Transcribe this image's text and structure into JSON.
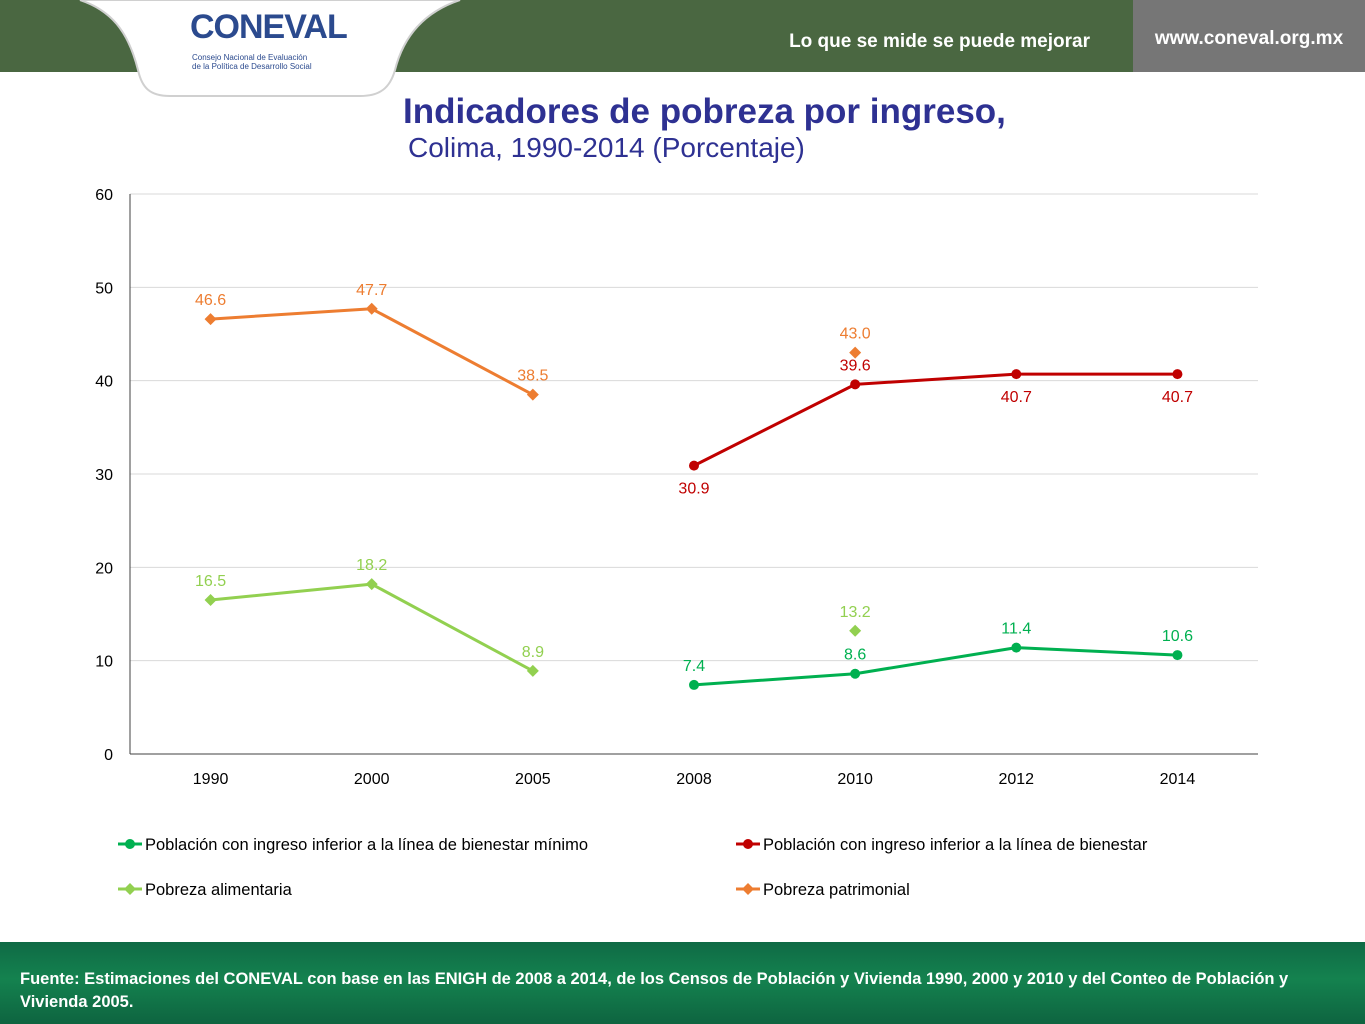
{
  "header": {
    "logo_text": "CONEVAL",
    "logo_subtitle_line1": "Consejo Nacional de Evaluación",
    "logo_subtitle_line2": "de la Política de Desarrollo Social",
    "tagline": "Lo que se mide se puede mejorar",
    "url": "www.coneval.org.mx"
  },
  "title": "Indicadores de pobreza por ingreso,",
  "subtitle": "Colima, 1990-2014 (Porcentaje)",
  "footer": {
    "source": "Fuente: Estimaciones del CONEVAL con base en las ENIGH de 2008 a 2014, de los Censos de Población y Vivienda 1990, 2000 y 2010 y del Conteo de Población y Vivienda 2005."
  },
  "colors": {
    "header_bg": "#4a6741",
    "title": "#2e3192",
    "bienestar_minimo": "#00b050",
    "bienestar": "#c00000",
    "pobreza_alimentaria": "#92d050",
    "pobreza_patrimonial": "#ed7d31"
  },
  "chart_data": {
    "type": "line",
    "categories": [
      "1990",
      "2000",
      "2005",
      "2008",
      "2010",
      "2012",
      "2014"
    ],
    "ylim": [
      0,
      60
    ],
    "yticks": [
      0,
      10,
      20,
      30,
      40,
      50,
      60
    ],
    "grid": true,
    "legend_position": "bottom",
    "series": [
      {
        "name": "Población con ingreso inferior a la línea de bienestar mínimo",
        "marker": "circle",
        "color": "#00b050",
        "values": [
          null,
          null,
          null,
          7.4,
          8.6,
          11.4,
          10.6
        ],
        "labels": [
          "",
          "",
          "",
          "7.4",
          "8.6",
          "11.4",
          "10.6"
        ]
      },
      {
        "name": "Población con ingreso inferior a la línea de bienestar",
        "marker": "circle",
        "color": "#c00000",
        "values": [
          null,
          null,
          null,
          30.9,
          39.6,
          40.7,
          40.7
        ],
        "labels": [
          "",
          "",
          "",
          "30.9",
          "39.6",
          "40.7",
          "40.7"
        ]
      },
      {
        "name": "Pobreza alimentaria",
        "marker": "diamond",
        "color": "#92d050",
        "values": [
          16.5,
          18.2,
          8.9,
          null,
          13.2,
          null,
          null
        ],
        "connect_until": 2,
        "labels": [
          "16.5",
          "18.2",
          "8.9",
          "",
          "13.2",
          "",
          ""
        ]
      },
      {
        "name": "Pobreza patrimonial",
        "marker": "diamond",
        "color": "#ed7d31",
        "values": [
          46.6,
          47.7,
          38.5,
          null,
          43.0,
          null,
          null
        ],
        "connect_until": 2,
        "labels": [
          "46.6",
          "47.7",
          "38.5",
          "",
          "43.0",
          "",
          ""
        ]
      }
    ]
  }
}
